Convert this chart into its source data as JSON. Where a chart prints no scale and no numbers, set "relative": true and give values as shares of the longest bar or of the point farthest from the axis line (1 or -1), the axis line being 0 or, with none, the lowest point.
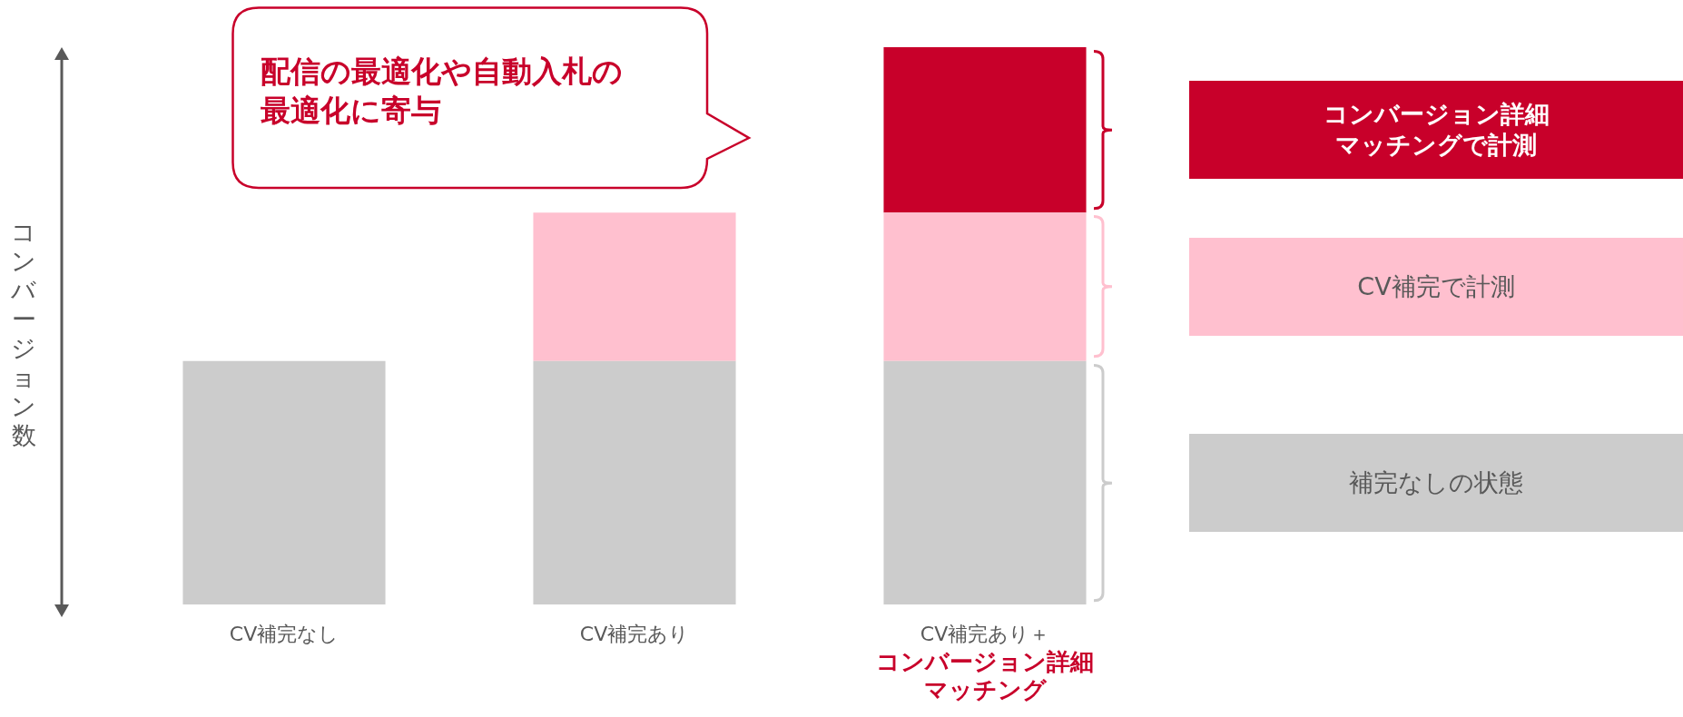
{
  "chart_data": {
    "type": "bar",
    "stacked": true,
    "relative": true,
    "legend": "right",
    "ylabel": "コンバージョン数",
    "categories": [
      "CV補完なし",
      "CV補完あり",
      "CV補完あり＋コンバージョン詳細マッチング"
    ],
    "series": [
      {
        "name": "補完なしの状態",
        "color": "#cccccc",
        "values": [
          0.437,
          0.437,
          0.437
        ]
      },
      {
        "name": "CV補完で計測",
        "color": "#ffc0cf",
        "values": [
          null,
          0.266,
          0.266
        ]
      },
      {
        "name": "コンバージョン詳細マッチングで計測",
        "color": "#c8002a",
        "values": [
          null,
          null,
          0.297
        ]
      }
    ],
    "annotations": [
      "配信の最適化や自動入札の最適化に寄与"
    ]
  }
}
